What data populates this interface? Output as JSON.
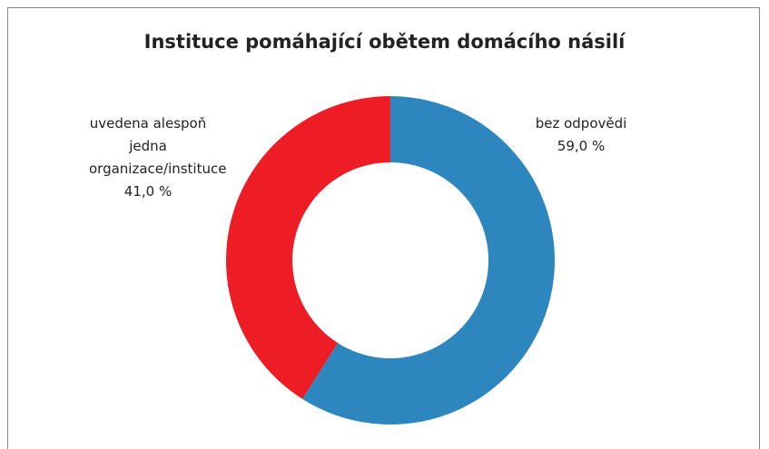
{
  "chart_data": {
    "type": "donut",
    "title": "Instituce pomáhající obětem domácího násilí",
    "categories": [
      "bez odpovědi",
      "uvedena alespoň jedna organizace/instituce"
    ],
    "values": [
      59.0,
      41.0
    ],
    "value_labels": [
      "59,0 %",
      "41,0 %"
    ],
    "colors": [
      "#2e86bf",
      "#ee1c25"
    ]
  }
}
